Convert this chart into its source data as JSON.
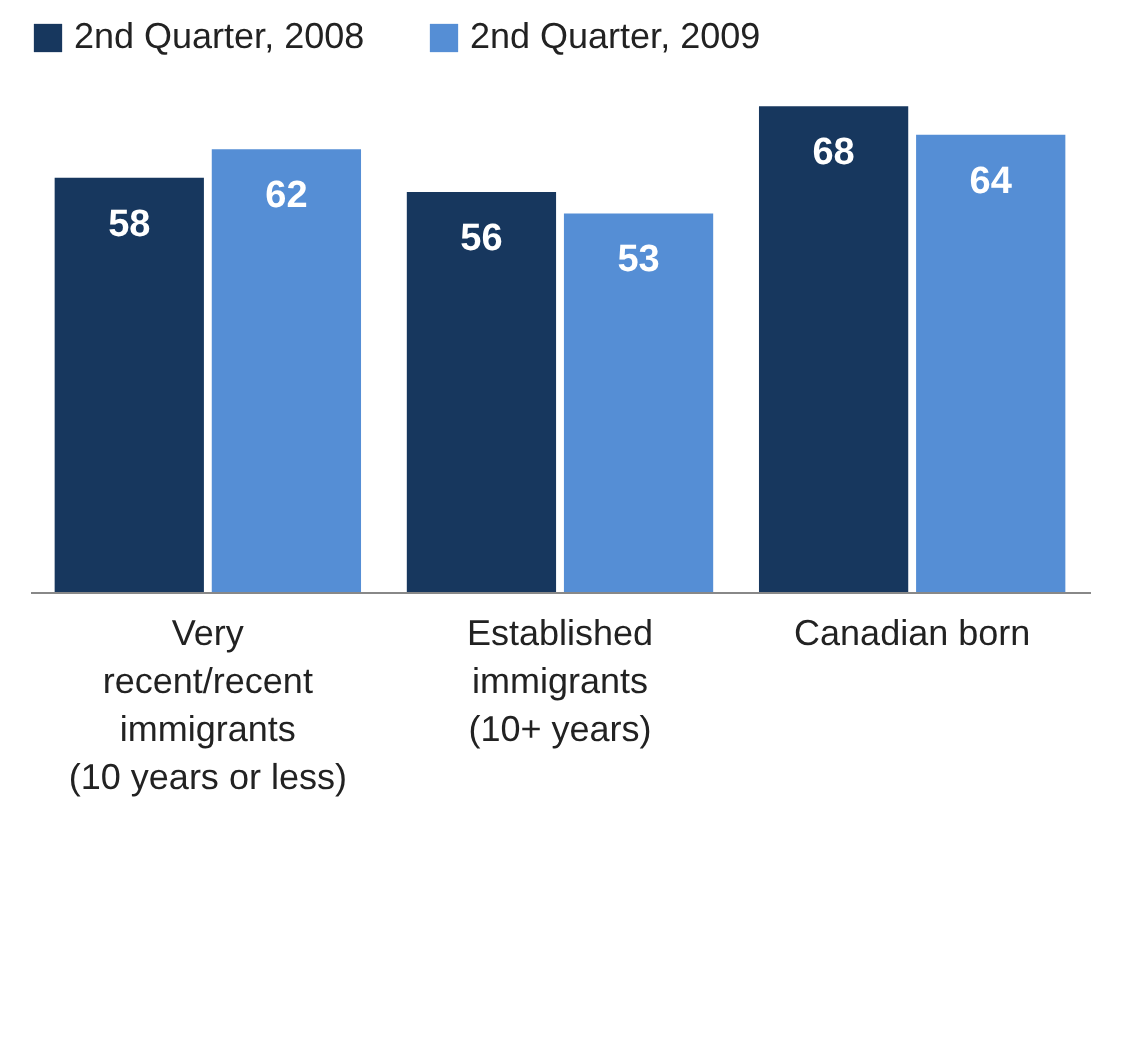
{
  "chart_data": {
    "type": "bar",
    "categories": [
      "Very recent/recent immigrants (10 years or less)",
      "Established immigrants (10+ years)",
      "Canadian born"
    ],
    "series": [
      {
        "name": "2nd Quarter, 2008",
        "color": "#17375e",
        "values": [
          58,
          56,
          68
        ]
      },
      {
        "name": "2nd Quarter, 2009",
        "color": "#558ed5",
        "values": [
          62,
          53,
          64
        ]
      }
    ],
    "data_labels": true,
    "legend": "top",
    "grid": false
  }
}
